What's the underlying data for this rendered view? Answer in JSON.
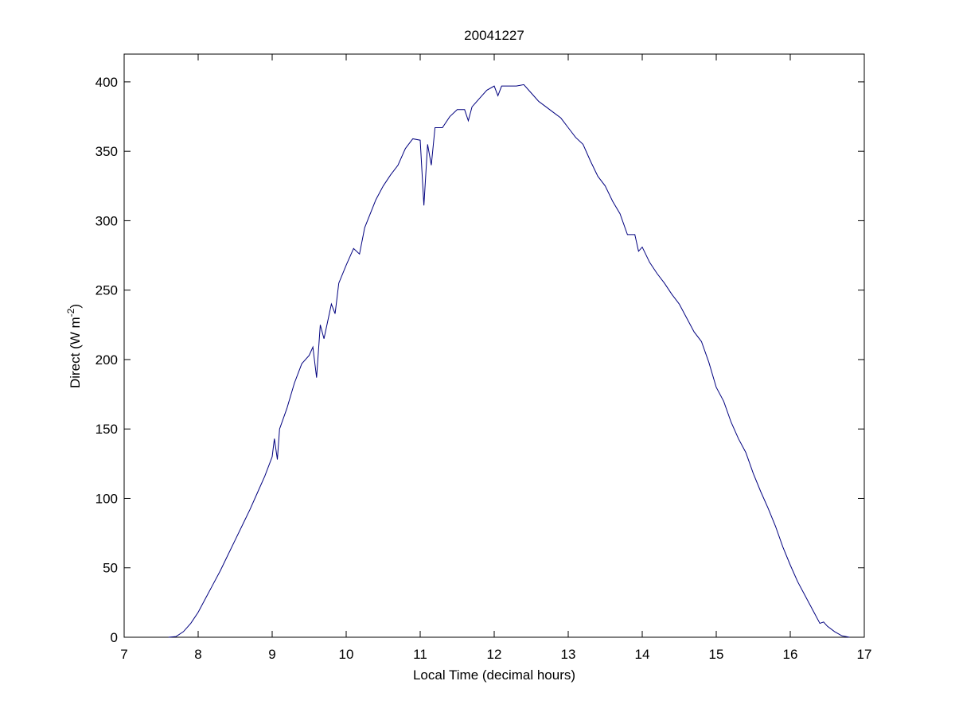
{
  "chart_data": {
    "type": "line",
    "title": "20041227",
    "xlabel": "Local Time (decimal hours)",
    "ylabel": {
      "text": "Direct (W m",
      "superscript": "-2",
      "suffix": ")"
    },
    "x": [
      7.6,
      7.7,
      7.8,
      7.9,
      8.0,
      8.1,
      8.2,
      8.3,
      8.4,
      8.5,
      8.6,
      8.7,
      8.8,
      8.9,
      9.0,
      9.03,
      9.07,
      9.1,
      9.2,
      9.3,
      9.4,
      9.5,
      9.55,
      9.6,
      9.65,
      9.7,
      9.8,
      9.85,
      9.9,
      10.0,
      10.1,
      10.18,
      10.25,
      10.4,
      10.5,
      10.6,
      10.7,
      10.8,
      10.9,
      11.0,
      11.05,
      11.1,
      11.15,
      11.2,
      11.3,
      11.4,
      11.5,
      11.6,
      11.65,
      11.7,
      11.8,
      11.9,
      12.0,
      12.05,
      12.1,
      12.2,
      12.3,
      12.4,
      12.5,
      12.6,
      12.7,
      12.8,
      12.9,
      13.0,
      13.1,
      13.2,
      13.3,
      13.4,
      13.5,
      13.6,
      13.7,
      13.8,
      13.9,
      13.95,
      14.0,
      14.1,
      14.2,
      14.3,
      14.4,
      14.5,
      14.6,
      14.7,
      14.8,
      14.9,
      15.0,
      15.1,
      15.2,
      15.3,
      15.4,
      15.5,
      15.6,
      15.7,
      15.8,
      15.9,
      16.0,
      16.1,
      16.2,
      16.3,
      16.4,
      16.45,
      16.5,
      16.6,
      16.7,
      16.8
    ],
    "series": [
      {
        "color": "#00007f",
        "values": [
          0,
          0.5,
          4,
          10,
          18,
          28,
          38,
          48,
          59,
          70,
          81,
          92,
          104,
          116,
          130,
          143,
          128,
          150,
          165,
          183,
          197,
          203,
          209,
          187,
          225,
          215,
          240,
          233,
          255,
          268,
          280,
          276,
          295,
          315,
          325,
          333,
          340,
          352,
          359,
          358,
          311,
          355,
          340,
          367,
          367,
          375,
          380,
          380,
          372,
          382,
          388,
          394,
          397,
          390,
          397,
          397,
          397,
          398,
          392,
          386,
          382,
          378,
          374,
          367,
          360,
          355,
          343,
          332,
          325,
          314,
          305,
          290,
          290,
          278,
          281,
          270,
          262,
          255,
          247,
          240,
          230,
          220,
          213,
          198,
          180,
          170,
          155,
          143,
          133,
          118,
          105,
          93,
          80,
          65,
          52,
          40,
          30,
          20,
          10,
          11,
          8,
          4,
          1,
          0
        ]
      }
    ],
    "xlim": [
      7,
      17
    ],
    "xticks": [
      7,
      8,
      9,
      10,
      11,
      12,
      13,
      14,
      15,
      16,
      17
    ],
    "ylim": [
      0,
      420
    ],
    "yticks": [
      0,
      50,
      100,
      150,
      200,
      250,
      300,
      350,
      400
    ]
  }
}
